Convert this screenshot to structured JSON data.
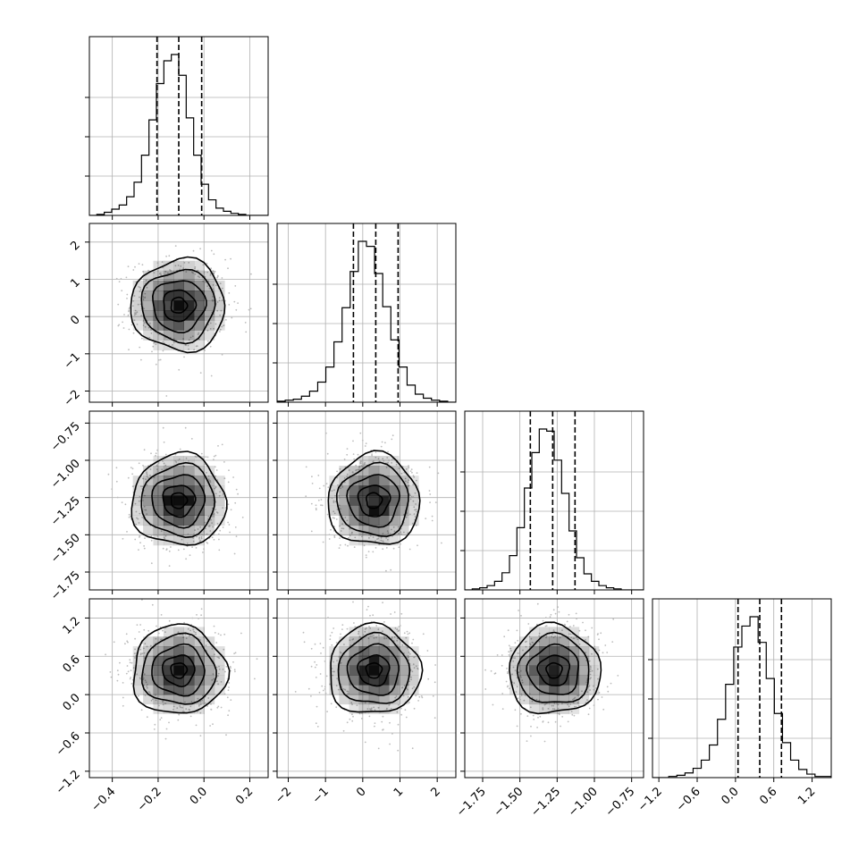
{
  "chart_data": {
    "type": "corner",
    "title": "",
    "variables": [
      {
        "range": [
          -0.5,
          0.28
        ],
        "ticks": [
          "−0.4",
          "−0.2",
          "0.0",
          "0.2"
        ],
        "tick_values": [
          -0.4,
          -0.2,
          0.0,
          0.2
        ],
        "quantiles": [
          -0.205,
          -0.11,
          -0.01
        ],
        "hist_bins": [
          -0.5,
          0.28
        ],
        "hist_counts": [
          0,
          1,
          3,
          6,
          10,
          18,
          32,
          58,
          92,
          127,
          149,
          155,
          135,
          94,
          58,
          30,
          15,
          7,
          4,
          2,
          1,
          0,
          0,
          0
        ]
      },
      {
        "range": [
          -2.3,
          2.5
        ],
        "ticks": [
          "−2",
          "−1",
          "0",
          "1",
          "2"
        ],
        "tick_values": [
          -2,
          -1,
          0,
          1,
          2
        ],
        "quantiles": [
          -0.25,
          0.35,
          0.95
        ],
        "hist_bins": [
          -2.3,
          2.5
        ],
        "hist_counts": [
          1,
          2,
          3,
          6,
          11,
          20,
          35,
          60,
          94,
          130,
          160,
          155,
          128,
          95,
          62,
          35,
          17,
          8,
          4,
          2,
          1,
          0
        ]
      },
      {
        "range": [
          -1.87,
          -0.67
        ],
        "ticks": [
          "−1.75",
          "−1.50",
          "−1.25",
          "−1.00",
          "−0.75"
        ],
        "tick_values": [
          -1.75,
          -1.5,
          -1.25,
          -1.0,
          -0.75
        ],
        "quantiles": [
          -1.43,
          -1.28,
          -1.13
        ],
        "hist_bins": [
          -1.87,
          -0.67
        ],
        "hist_counts": [
          0,
          1,
          2,
          4,
          8,
          16,
          32,
          58,
          95,
          128,
          150,
          148,
          121,
          90,
          55,
          30,
          15,
          8,
          4,
          2,
          1,
          0,
          0,
          0
        ]
      },
      {
        "range": [
          -1.3,
          1.5
        ],
        "ticks": [
          "−1.2",
          "−0.6",
          "0.0",
          "0.6",
          "1.2"
        ],
        "tick_values": [
          -1.2,
          -0.6,
          0.0,
          0.6,
          1.2
        ],
        "quantiles": [
          0.04,
          0.38,
          0.72
        ],
        "hist_bins": [
          -1.3,
          1.5
        ],
        "hist_counts": [
          0,
          0,
          1,
          2,
          4,
          8,
          15,
          28,
          50,
          80,
          112,
          130,
          138,
          116,
          85,
          55,
          30,
          15,
          7,
          3,
          1,
          1
        ]
      }
    ],
    "means": [
      -0.11,
      0.3,
      -1.27,
      0.38
    ],
    "stds": [
      0.1,
      0.6,
      0.15,
      0.34
    ],
    "contour_levels": [
      "inner",
      "0.5-sigma",
      "1-sigma",
      "1.5-sigma",
      "2-sigma"
    ],
    "colors": {
      "hist": "#000000",
      "quantile": "#000000",
      "points": "#bdbdbd",
      "grid": "#b0b0b0",
      "density": "#000000"
    }
  }
}
